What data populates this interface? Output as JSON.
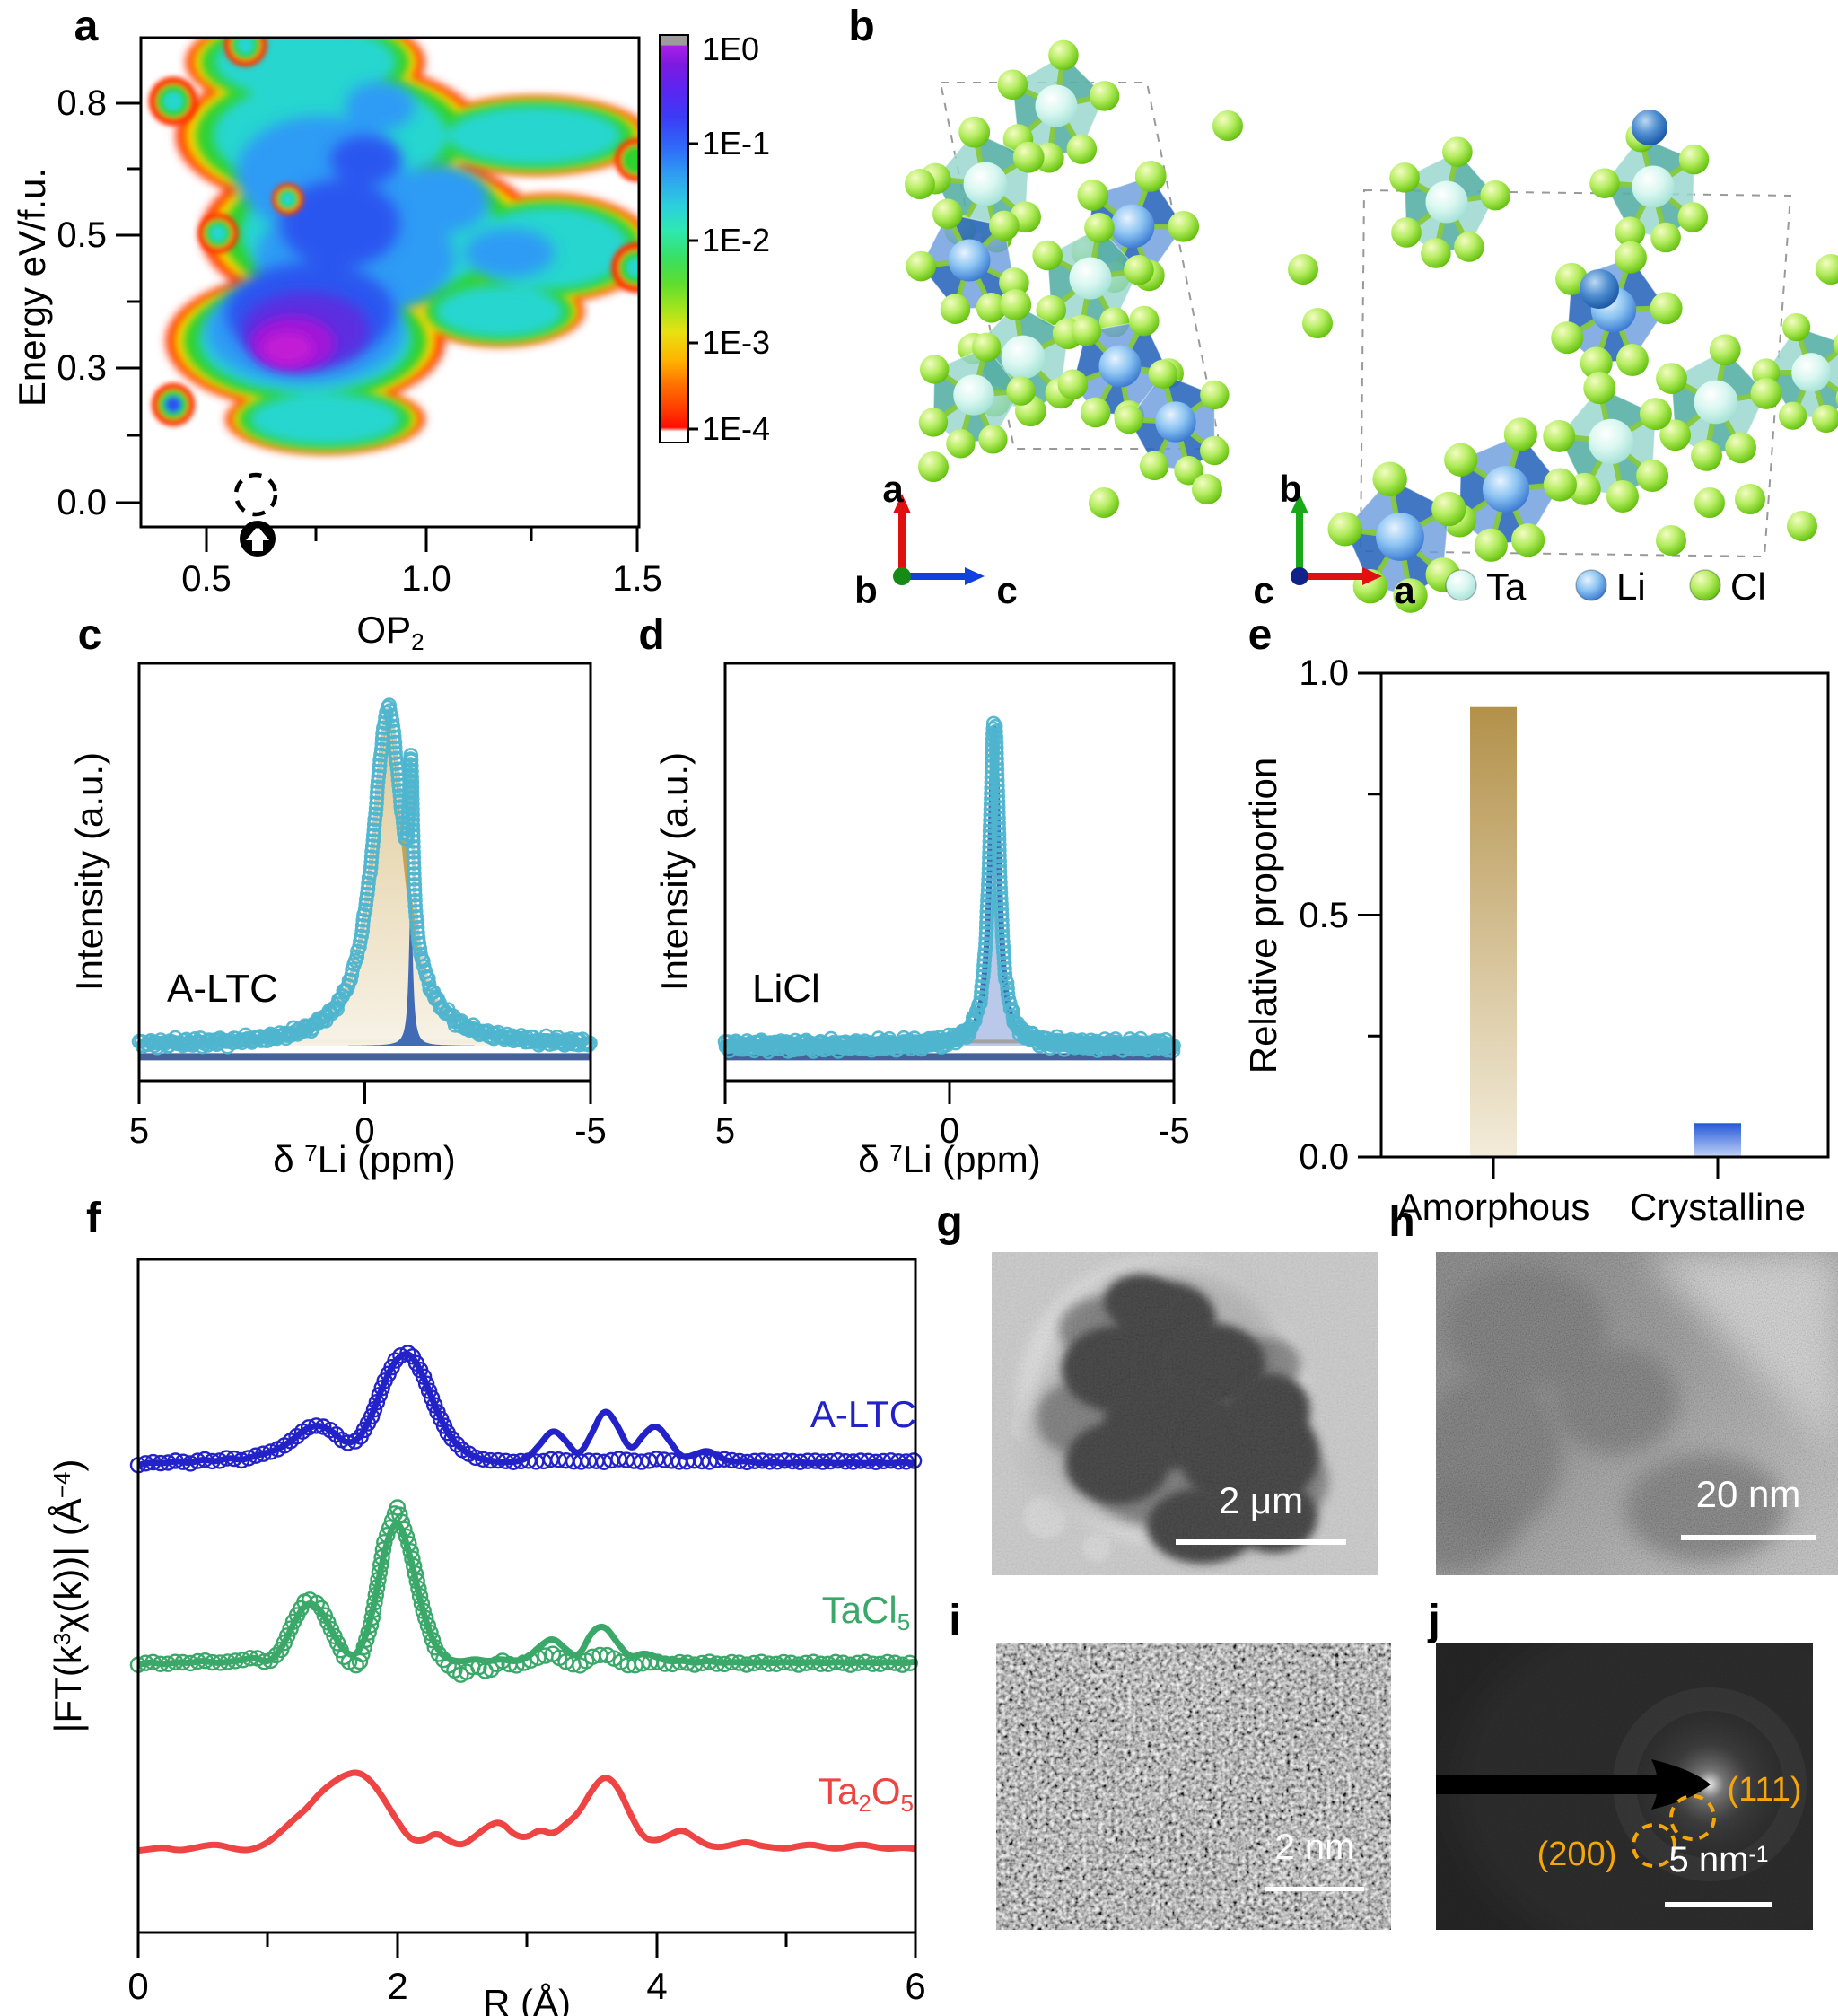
{
  "panels": {
    "a": {
      "label": "a",
      "ylabel": "Energy eV/f.u.",
      "xlabel": [
        {
          "t": "OP"
        },
        {
          "t": "2",
          "s": "sub"
        }
      ],
      "yticks": [
        "0.8",
        "0.5",
        "0.3",
        "0.0"
      ],
      "xticks": [
        "0.5",
        "1.0",
        "1.5"
      ],
      "colorbar_ticks": [
        "1E0",
        "1E-1",
        "1E-2",
        "1E-3",
        "1E-4"
      ]
    },
    "b": {
      "label": "b",
      "legend": [
        {
          "name": "Ta"
        },
        {
          "name": "Li"
        },
        {
          "name": "Cl"
        }
      ],
      "axes_left": {
        "up": "a",
        "origin": "b",
        "right": "c"
      },
      "axes_right": {
        "up": "b",
        "origin": "c",
        "right": "a"
      }
    },
    "c": {
      "label": "c",
      "annotation": "A-LTC",
      "ylabel": "Intensity (a.u.)",
      "xticks": [
        "5",
        "0",
        "-5"
      ],
      "xlabel": [
        {
          "t": "δ "
        },
        {
          "t": "7",
          "s": "sup"
        },
        {
          "t": "Li (ppm)"
        }
      ]
    },
    "d": {
      "label": "d",
      "annotation": "LiCl",
      "ylabel": "Intensity (a.u.)",
      "xticks": [
        "5",
        "0",
        "-5"
      ],
      "xlabel": [
        {
          "t": "δ "
        },
        {
          "t": "7",
          "s": "sup"
        },
        {
          "t": "Li (ppm)"
        }
      ]
    },
    "e": {
      "label": "e",
      "ylabel": "Relative proportion",
      "yticks": [
        "1.0",
        "0.5",
        "0.0"
      ],
      "categories": [
        "Amorphous",
        "Crystalline"
      ]
    },
    "f": {
      "label": "f",
      "ylabel": [
        {
          "t": "|FT(k"
        },
        {
          "t": "3",
          "s": "sup"
        },
        {
          "t": "χ(k))| (Å"
        },
        {
          "t": "−4",
          "s": "sup"
        },
        {
          "t": ")"
        }
      ],
      "xlabel": "R (Å)",
      "xticks": [
        "0",
        "2",
        "4",
        "6"
      ],
      "series_labels": [
        {
          "text": [
            {
              "t": "A-LTC"
            }
          ],
          "color": "#2222c8"
        },
        {
          "text": [
            {
              "t": "TaCl"
            },
            {
              "t": "5",
              "s": "sub"
            }
          ],
          "color": "#3aa869"
        },
        {
          "text": [
            {
              "t": "Ta"
            },
            {
              "t": "2",
              "s": "sub"
            },
            {
              "t": "O"
            },
            {
              "t": "5",
              "s": "sub"
            }
          ],
          "color": "#ef4444"
        }
      ]
    },
    "g": {
      "label": "g",
      "scalebar": "2 μm"
    },
    "h": {
      "label": "h",
      "scalebar": "20 nm"
    },
    "i": {
      "label": "i",
      "scalebar": "2 nm"
    },
    "j": {
      "label": "j",
      "scalebar": [
        {
          "t": "5 nm"
        },
        {
          "t": "-1",
          "s": "sup"
        }
      ],
      "rings": [
        "(111)",
        "(200)"
      ]
    }
  },
  "chart_data": [
    {
      "id": "a",
      "type": "heatmap",
      "xlabel": "OP2",
      "ylabel": "Energy eV/f.u.",
      "xticks": [
        0.5,
        1.0,
        1.5
      ],
      "yticks": [
        0.0,
        0.3,
        0.5,
        0.8
      ],
      "colorbar": {
        "scale": "log rainbow",
        "ticks": [
          "1E0",
          "1E-1",
          "1E-2",
          "1E-3",
          "1E-4"
        ]
      },
      "density_maximum": {
        "OP2": 0.73,
        "energy": 0.22
      },
      "marked_point": {
        "OP2": 0.62,
        "energy": 0.02,
        "note": "dashed circle with black arrow marker"
      }
    },
    {
      "id": "c",
      "type": "line",
      "annotation": "A-LTC",
      "ylabel": "Intensity (a.u.)",
      "xlabel": "δ 7Li (ppm)",
      "x_range": [
        5,
        -5
      ],
      "experimental": {
        "marker": "open circles",
        "color": "#4fb5cf"
      },
      "peaks": [
        {
          "name": "amorphous",
          "center_ppm": -0.52,
          "hwhm_ppm": 0.42,
          "amplitude": 0.97,
          "color": "#c6a255"
        },
        {
          "name": "crystalline",
          "center_ppm": -1.02,
          "hwhm_ppm": 0.05,
          "amplitude": 0.44,
          "color": "#3c66b4"
        }
      ]
    },
    {
      "id": "d",
      "type": "line",
      "annotation": "LiCl",
      "ylabel": "Intensity (a.u.)",
      "xlabel": "δ 7Li (ppm)",
      "x_range": [
        5,
        -5
      ],
      "experimental": {
        "marker": "open circles",
        "color": "#4fb5cf"
      },
      "peaks": [
        {
          "name": "LiCl",
          "center_ppm": -1.0,
          "hwhm_ppm": 0.13,
          "amplitude": 0.95,
          "color": "#3c66b4"
        }
      ]
    },
    {
      "id": "e",
      "type": "bar",
      "ylabel": "Relative proportion",
      "ylim": [
        0,
        1.0
      ],
      "categories": [
        "Amorphous",
        "Crystalline"
      ],
      "values": [
        0.93,
        0.07
      ],
      "colors": [
        "#bf9d58",
        "#2968e0"
      ]
    },
    {
      "id": "f",
      "type": "line",
      "xlabel": "R (Å)",
      "ylabel": "|FT(k3χ(k))| (Å-4)",
      "xlim": [
        0,
        6
      ],
      "x_start": 0,
      "x_step": 0.1,
      "series": [
        {
          "name": "A-LTC data",
          "marker": "circle",
          "color": "#2222c8",
          "baseline": 3.0,
          "y": [
            0.02,
            0.04,
            0.03,
            0.05,
            0.03,
            0.06,
            0.04,
            0.07,
            0.05,
            0.08,
            0.1,
            0.13,
            0.19,
            0.26,
            0.28,
            0.24,
            0.16,
            0.18,
            0.33,
            0.56,
            0.72,
            0.75,
            0.6,
            0.38,
            0.21,
            0.12,
            0.07,
            0.05,
            0.05,
            0.04,
            0.05,
            0.04,
            0.06,
            0.05,
            0.04,
            0.05,
            0.04,
            0.06,
            0.05,
            0.04,
            0.06,
            0.05,
            0.04,
            0.05,
            0.04,
            0.06,
            0.05,
            0.04,
            0.05,
            0.04,
            0.05,
            0.04,
            0.05,
            0.04,
            0.05,
            0.04,
            0.05,
            0.04,
            0.05,
            0.04,
            0.05
          ]
        },
        {
          "name": "A-LTC fit",
          "marker": "line",
          "color": "#2222c8",
          "baseline": 3.0,
          "y": [
            0.02,
            0.04,
            0.03,
            0.05,
            0.03,
            0.06,
            0.04,
            0.07,
            0.05,
            0.08,
            0.1,
            0.13,
            0.19,
            0.26,
            0.28,
            0.24,
            0.16,
            0.18,
            0.33,
            0.56,
            0.72,
            0.75,
            0.6,
            0.38,
            0.21,
            0.12,
            0.07,
            0.05,
            0.04,
            0.04,
            0.06,
            0.15,
            0.26,
            0.18,
            0.07,
            0.22,
            0.4,
            0.28,
            0.1,
            0.22,
            0.29,
            0.18,
            0.06,
            0.09,
            0.12,
            0.06,
            0.04,
            0.05,
            0.03,
            0.04,
            0.03,
            0.04,
            0.03,
            0.04,
            0.03,
            0.04,
            0.03,
            0.04,
            0.03,
            0.04,
            0.03
          ]
        },
        {
          "name": "TaCl5 data",
          "marker": "circle",
          "color": "#3aa869",
          "baseline": 1.7,
          "y": [
            0.03,
            0.05,
            0.03,
            0.05,
            0.04,
            0.06,
            0.04,
            0.05,
            0.06,
            0.08,
            0.04,
            0.12,
            0.31,
            0.46,
            0.42,
            0.24,
            0.06,
            0.02,
            0.3,
            0.82,
            1.05,
            0.78,
            0.38,
            0.12,
            0.02,
            -0.04,
            0.03,
            -0.02,
            0.06,
            0.02,
            0.05,
            0.08,
            0.1,
            0.05,
            0.02,
            0.08,
            0.1,
            0.06,
            0.02,
            0.04,
            0.05,
            0.03,
            0.05,
            0.03,
            0.05,
            0.03,
            0.05,
            0.03,
            0.05,
            0.03,
            0.05,
            0.03,
            0.05,
            0.03,
            0.05,
            0.03,
            0.05,
            0.03,
            0.05,
            0.03,
            0.05
          ]
        },
        {
          "name": "TaCl5 fit",
          "marker": "line",
          "color": "#3aa869",
          "baseline": 1.7,
          "y": [
            0.03,
            0.05,
            0.03,
            0.05,
            0.04,
            0.06,
            0.04,
            0.05,
            0.06,
            0.08,
            0.04,
            0.12,
            0.3,
            0.44,
            0.4,
            0.24,
            0.1,
            0.09,
            0.32,
            0.78,
            1.0,
            0.74,
            0.36,
            0.13,
            0.06,
            0.05,
            0.07,
            0.05,
            0.07,
            0.05,
            0.07,
            0.15,
            0.21,
            0.13,
            0.07,
            0.25,
            0.29,
            0.17,
            0.07,
            0.11,
            0.08,
            0.05,
            0.06,
            0.04,
            0.06,
            0.04,
            0.05,
            0.04,
            0.05,
            0.04,
            0.05,
            0.04,
            0.05,
            0.04,
            0.05,
            0.04,
            0.05,
            0.04,
            0.05,
            0.04,
            0.05
          ]
        },
        {
          "name": "Ta2O5",
          "marker": "line",
          "color": "#ef4444",
          "baseline": 0.5,
          "y": [
            0.03,
            0.04,
            0.05,
            0.03,
            0.04,
            0.06,
            0.07,
            0.05,
            0.03,
            0.04,
            0.08,
            0.15,
            0.23,
            0.3,
            0.4,
            0.47,
            0.52,
            0.54,
            0.48,
            0.36,
            0.22,
            0.1,
            0.09,
            0.15,
            0.09,
            0.06,
            0.12,
            0.19,
            0.22,
            0.13,
            0.11,
            0.17,
            0.13,
            0.2,
            0.27,
            0.42,
            0.52,
            0.45,
            0.26,
            0.11,
            0.09,
            0.13,
            0.17,
            0.11,
            0.06,
            0.05,
            0.07,
            0.09,
            0.06,
            0.05,
            0.04,
            0.06,
            0.07,
            0.05,
            0.04,
            0.06,
            0.07,
            0.05,
            0.04,
            0.05,
            0.04
          ]
        }
      ]
    }
  ]
}
